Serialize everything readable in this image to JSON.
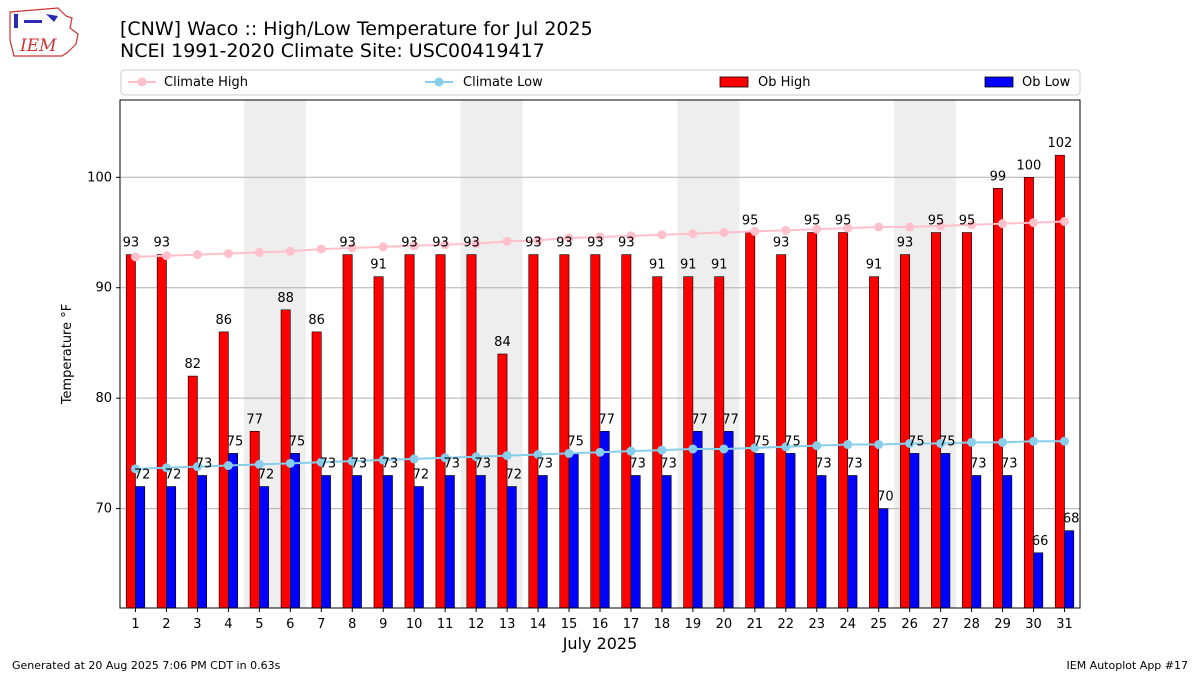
{
  "chart_data": {
    "type": "bar",
    "title_line1": "[CNW] Waco :: High/Low Temperature for Jul 2025",
    "title_line2": "NCEI 1991-2020 Climate Site: USC00419417",
    "xlabel": "July 2025",
    "ylabel": "Temperature °F",
    "ylim": [
      61,
      107
    ],
    "yticks": [
      70,
      80,
      90,
      100
    ],
    "categories": [
      "1",
      "2",
      "3",
      "4",
      "5",
      "6",
      "7",
      "8",
      "9",
      "10",
      "11",
      "12",
      "13",
      "14",
      "15",
      "16",
      "17",
      "18",
      "19",
      "20",
      "21",
      "22",
      "23",
      "24",
      "25",
      "26",
      "27",
      "28",
      "29",
      "30",
      "31"
    ],
    "weekend_shading": [
      [
        5,
        6
      ],
      [
        12,
        13
      ],
      [
        19,
        20
      ],
      [
        26,
        27
      ]
    ],
    "series": [
      {
        "name": "Ob High",
        "type": "bar",
        "color": "#ff0000",
        "values": [
          93,
          93,
          82,
          86,
          77,
          88,
          86,
          93,
          91,
          93,
          93,
          93,
          84,
          93,
          93,
          93,
          93,
          91,
          91,
          91,
          95,
          93,
          95,
          95,
          91,
          93,
          95,
          95,
          99,
          100,
          102
        ]
      },
      {
        "name": "Ob Low",
        "type": "bar",
        "color": "#0000ff",
        "values": [
          72,
          72,
          73,
          75,
          72,
          75,
          73,
          73,
          73,
          72,
          73,
          73,
          72,
          73,
          75,
          77,
          73,
          73,
          77,
          77,
          75,
          75,
          73,
          73,
          70,
          75,
          75,
          73,
          73,
          66,
          68
        ]
      },
      {
        "name": "Climate High",
        "type": "line",
        "color": "#ffc0cb",
        "values": [
          92.8,
          92.9,
          93.0,
          93.1,
          93.2,
          93.3,
          93.5,
          93.6,
          93.7,
          93.8,
          93.9,
          94.0,
          94.2,
          94.3,
          94.5,
          94.6,
          94.7,
          94.8,
          94.9,
          95.0,
          95.1,
          95.2,
          95.3,
          95.4,
          95.5,
          95.5,
          95.6,
          95.7,
          95.8,
          95.9,
          96.0
        ]
      },
      {
        "name": "Climate Low",
        "type": "line",
        "color": "#87ceeb",
        "values": [
          73.6,
          73.7,
          73.8,
          73.9,
          74.0,
          74.1,
          74.2,
          74.3,
          74.4,
          74.5,
          74.6,
          74.7,
          74.8,
          74.9,
          75.0,
          75.1,
          75.2,
          75.3,
          75.4,
          75.4,
          75.5,
          75.6,
          75.7,
          75.8,
          75.8,
          75.9,
          75.9,
          76.0,
          76.0,
          76.1,
          76.1
        ]
      }
    ],
    "legend": {
      "position": "top",
      "items": [
        "Climate High",
        "Climate Low",
        "Ob High",
        "Ob Low"
      ]
    }
  },
  "logo_text": "IEM",
  "footer": {
    "left": "Generated at 20 Aug 2025 7:06 PM CDT in 0.63s",
    "right": "IEM Autoplot App #17"
  }
}
